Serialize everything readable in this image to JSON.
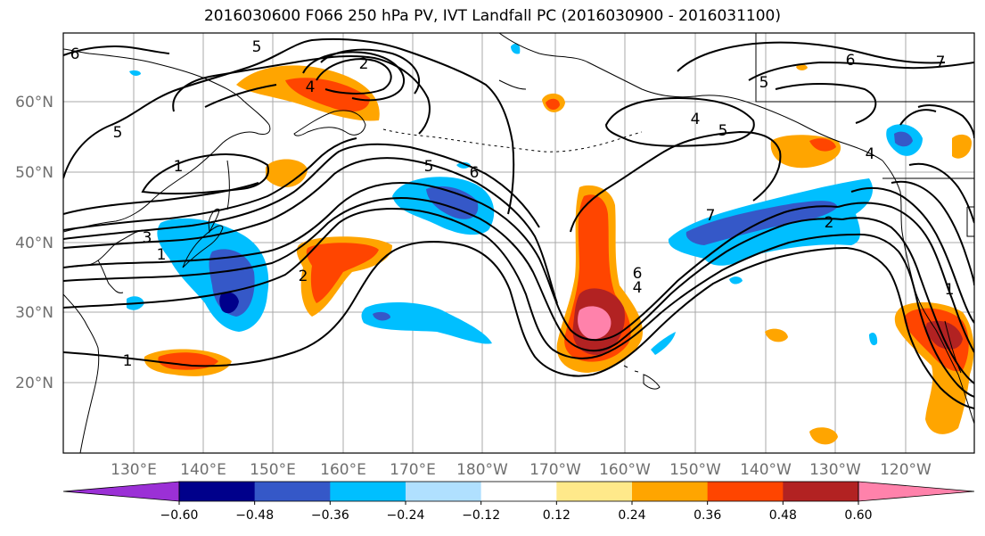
{
  "title": "2016030600 F066 250 hPa PV, IVT Landfall PC (2016030900 - 2016031100)",
  "lat_labels": [
    "60°N",
    "50°N",
    "40°N",
    "30°N",
    "20°N"
  ],
  "lon_labels": [
    "130°E",
    "140°E",
    "150°E",
    "160°E",
    "170°E",
    "180°W",
    "170°W",
    "160°W",
    "150°W",
    "140°W",
    "130°W",
    "120°W"
  ],
  "contour_labels": [
    "6",
    "5",
    "2",
    "4",
    "5",
    "1",
    "3",
    "1",
    "2",
    "1",
    "5",
    "6",
    "6",
    "4",
    "7",
    "2",
    "4",
    "6",
    "7",
    "5",
    "4",
    "5",
    "1"
  ],
  "colorbar": {
    "ticks": [
      "−0.60",
      "−0.48",
      "−0.36",
      "−0.24",
      "−0.12",
      "0.12",
      "0.24",
      "0.36",
      "0.48",
      "0.60"
    ],
    "colors": [
      "#9b30d6",
      "#00008b",
      "#3558c8",
      "#00bfff",
      "#b0e0ff",
      "#ffffff",
      "#ffe98a",
      "#ffa500",
      "#ff4500",
      "#b22222",
      "#ff82ab"
    ]
  }
}
